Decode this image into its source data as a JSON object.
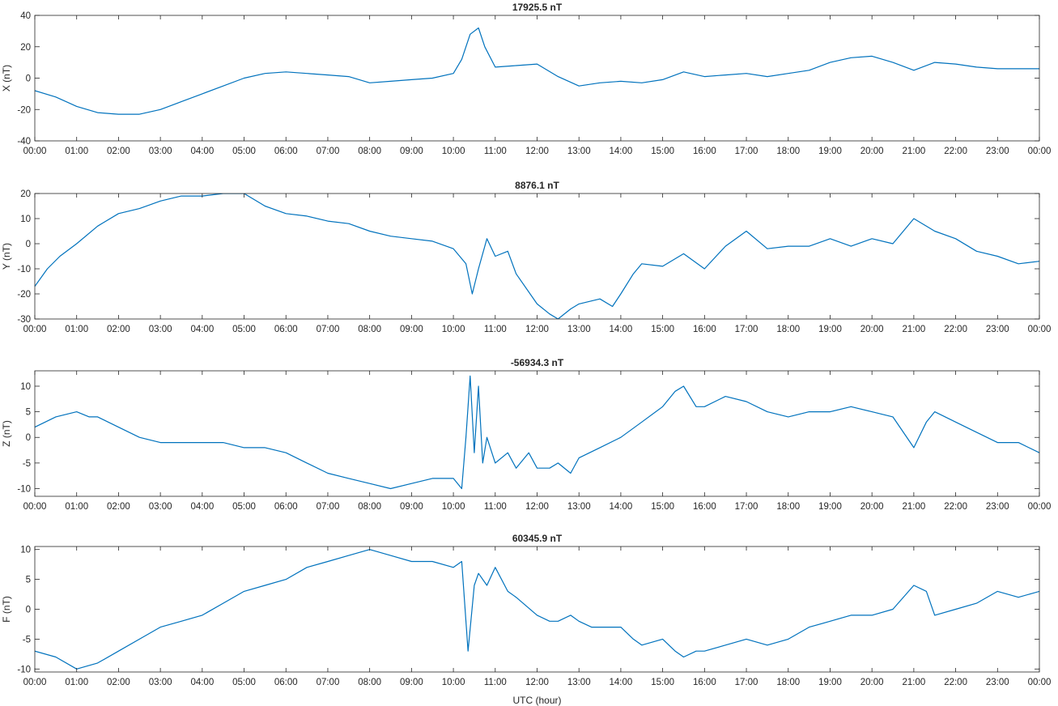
{
  "line_color": "#0072bd",
  "xlabel": "UTC (hour)",
  "x_tick_labels": [
    "00:00",
    "01:00",
    "02:00",
    "03:00",
    "04:00",
    "05:00",
    "06:00",
    "07:00",
    "08:00",
    "09:00",
    "10:00",
    "11:00",
    "12:00",
    "13:00",
    "14:00",
    "15:00",
    "16:00",
    "17:00",
    "18:00",
    "19:00",
    "20:00",
    "21:00",
    "22:00",
    "23:00",
    "00:00"
  ],
  "chart_data": [
    {
      "type": "line",
      "title": "17925.5 nT",
      "ylabel": "X (nT)",
      "xlim": [
        0,
        24
      ],
      "ylim": [
        -40,
        40
      ],
      "yticks": [
        -40,
        -20,
        0,
        20,
        40
      ],
      "grid": false,
      "series": [
        {
          "x": [
            0,
            0.5,
            1,
            1.5,
            2,
            2.5,
            3,
            3.5,
            4,
            4.5,
            5,
            5.5,
            6,
            6.5,
            7,
            7.5,
            8,
            8.5,
            9,
            9.5,
            10,
            10.2,
            10.4,
            10.6,
            10.75,
            11,
            11.5,
            12,
            12.5,
            13,
            13.5,
            14,
            14.5,
            15,
            15.5,
            16,
            16.5,
            17,
            17.5,
            18,
            18.5,
            19,
            19.5,
            20,
            20.5,
            21,
            21.5,
            22,
            22.5,
            23,
            23.5,
            24
          ],
          "y": [
            -8,
            -12,
            -18,
            -22,
            -23,
            -23,
            -20,
            -15,
            -10,
            -5,
            0,
            3,
            4,
            3,
            2,
            1,
            -3,
            -2,
            -1,
            0,
            3,
            12,
            28,
            32,
            20,
            7,
            8,
            9,
            1,
            -5,
            -3,
            -2,
            -3,
            -1,
            4,
            1,
            2,
            3,
            1,
            3,
            5,
            10,
            13,
            14,
            10,
            5,
            10,
            9,
            7,
            6,
            6,
            6
          ]
        }
      ]
    },
    {
      "type": "line",
      "title": "8876.1 nT",
      "ylabel": "Y (nT)",
      "xlim": [
        0,
        24
      ],
      "ylim": [
        -30,
        20
      ],
      "yticks": [
        -30,
        -20,
        -10,
        0,
        10,
        20
      ],
      "grid": false,
      "series": [
        {
          "x": [
            0,
            0.3,
            0.6,
            1,
            1.5,
            2,
            2.5,
            3,
            3.5,
            4,
            4.5,
            5,
            5.5,
            6,
            6.5,
            7,
            7.5,
            8,
            8.5,
            9,
            9.5,
            10,
            10.3,
            10.45,
            10.6,
            10.8,
            11,
            11.3,
            11.5,
            12,
            12.3,
            12.5,
            12.8,
            13,
            13.5,
            13.8,
            14,
            14.3,
            14.5,
            15,
            15.5,
            16,
            16.5,
            17,
            17.5,
            18,
            18.5,
            19,
            19.5,
            20,
            20.5,
            21,
            21.5,
            22,
            22.5,
            23,
            23.5,
            24
          ],
          "y": [
            -17,
            -10,
            -5,
            0,
            7,
            12,
            14,
            17,
            19,
            19,
            20,
            20,
            15,
            12,
            11,
            9,
            8,
            5,
            3,
            2,
            1,
            -2,
            -8,
            -20,
            -10,
            2,
            -5,
            -3,
            -12,
            -24,
            -28,
            -30,
            -26,
            -24,
            -22,
            -25,
            -20,
            -12,
            -8,
            -9,
            -4,
            -10,
            -1,
            5,
            -2,
            -1,
            -1,
            2,
            -1,
            2,
            0,
            10,
            5,
            2,
            -3,
            -5,
            -8,
            -7
          ]
        }
      ]
    },
    {
      "type": "line",
      "title": "-56934.3 nT",
      "ylabel": "Z (nT)",
      "xlim": [
        0,
        24
      ],
      "ylim": [
        -11.5,
        13
      ],
      "yticks": [
        -10,
        -5,
        0,
        5,
        10
      ],
      "grid": false,
      "series": [
        {
          "x": [
            0,
            0.5,
            1,
            1.3,
            1.5,
            2,
            2.5,
            3,
            3.5,
            4,
            4.5,
            5,
            5.5,
            6,
            6.5,
            7,
            7.5,
            8,
            8.5,
            9,
            9.5,
            10,
            10.2,
            10.3,
            10.4,
            10.5,
            10.6,
            10.7,
            10.8,
            11,
            11.3,
            11.5,
            11.8,
            12,
            12.3,
            12.5,
            12.8,
            13,
            13.5,
            14,
            14.5,
            15,
            15.3,
            15.5,
            15.8,
            16,
            16.5,
            17,
            17.5,
            18,
            18.5,
            19,
            19.5,
            20,
            20.5,
            21,
            21.3,
            21.5,
            22,
            22.5,
            23,
            23.5,
            24
          ],
          "y": [
            2,
            4,
            5,
            4,
            4,
            2,
            0,
            -1,
            -1,
            -1,
            -1,
            -2,
            -2,
            -3,
            -5,
            -7,
            -8,
            -9,
            -10,
            -9,
            -8,
            -8,
            -10,
            0,
            12,
            -3,
            10,
            -5,
            0,
            -5,
            -3,
            -6,
            -3,
            -6,
            -6,
            -5,
            -7,
            -4,
            -2,
            0,
            3,
            6,
            9,
            10,
            6,
            6,
            8,
            7,
            5,
            4,
            5,
            5,
            6,
            5,
            4,
            -2,
            3,
            5,
            3,
            1,
            -1,
            -1,
            -3
          ]
        }
      ]
    },
    {
      "type": "line",
      "title": "60345.9 nT",
      "ylabel": "F (nT)",
      "xlim": [
        0,
        24
      ],
      "ylim": [
        -10.5,
        10.5
      ],
      "yticks": [
        -10,
        -5,
        0,
        5,
        10
      ],
      "grid": false,
      "series": [
        {
          "x": [
            0,
            0.5,
            1,
            1.5,
            2,
            2.5,
            3,
            3.5,
            4,
            4.5,
            5,
            5.5,
            6,
            6.5,
            7,
            7.5,
            8,
            8.5,
            9,
            9.5,
            10,
            10.2,
            10.35,
            10.5,
            10.6,
            10.8,
            11,
            11.3,
            11.5,
            12,
            12.3,
            12.5,
            12.8,
            13,
            13.3,
            13.5,
            14,
            14.3,
            14.5,
            15,
            15.3,
            15.5,
            15.8,
            16,
            16.5,
            17,
            17.5,
            18,
            18.5,
            19,
            19.5,
            20,
            20.5,
            21,
            21.3,
            21.5,
            22,
            22.5,
            23,
            23.5,
            24
          ],
          "y": [
            -7,
            -8,
            -10,
            -9,
            -7,
            -5,
            -3,
            -2,
            -1,
            1,
            3,
            4,
            5,
            7,
            8,
            9,
            10,
            9,
            8,
            8,
            7,
            8,
            -7,
            4,
            6,
            4,
            7,
            3,
            2,
            -1,
            -2,
            -2,
            -1,
            -2,
            -3,
            -3,
            -3,
            -5,
            -6,
            -5,
            -7,
            -8,
            -7,
            -7,
            -6,
            -5,
            -6,
            -5,
            -3,
            -2,
            -1,
            -1,
            0,
            4,
            3,
            -1,
            0,
            1,
            3,
            2,
            3
          ]
        }
      ]
    }
  ]
}
